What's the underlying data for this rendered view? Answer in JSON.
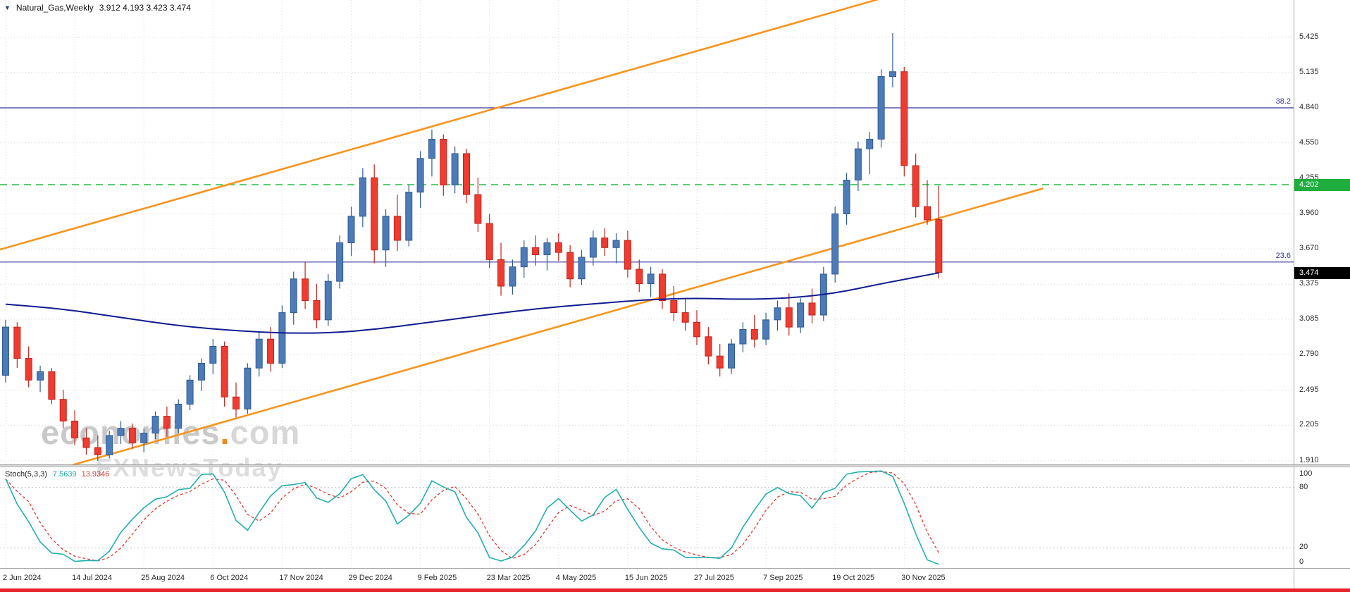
{
  "colors": {
    "background": "#ffffff",
    "grid": "#dadada",
    "bull": "#4d7bb8",
    "bull_edge": "#2f5a92",
    "bear": "#ef3b30",
    "bear_edge": "#c2241c",
    "bottom_border": "#e8232a"
  },
  "header": {
    "marker": "▼",
    "symbol": "Natural_Gas,Weekly",
    "ohlc_readout": "3.912 4.193 3.423 3.474"
  },
  "watermark": {
    "brand": "economies",
    "dot": ".",
    "tld": "com",
    "tagline": "FXNewsToday"
  },
  "indicator_label": {
    "name": "Stoch(5,3,3)",
    "value_main": "7.5639",
    "value_signal": "13.9346"
  },
  "price_axis": {
    "ticks": [
      "5.425",
      "5.135",
      "4.840",
      "4.550",
      "4.255",
      "3.960",
      "3.670",
      "3.375",
      "3.085",
      "2.790",
      "2.495",
      "2.205",
      "1.910"
    ],
    "current_price_tag": {
      "label": "3.474",
      "price": 3.474
    },
    "target_price_tag": {
      "label": "4.202",
      "price": 4.202
    }
  },
  "chart_data": {
    "type": "candlestick",
    "title": "Natural_Gas Weekly",
    "x_labels": [
      "2 Jun 2024",
      "14 Jul 2024",
      "25 Aug 2024",
      "6 Oct 2024",
      "17 Nov 2024",
      "29 Dec 2024",
      "9 Feb 2025",
      "23 Mar 2025",
      "4 May 2025",
      "15 Jun 2025",
      "27 Jul 2025",
      "7 Sep 2025",
      "19 Oct 2025",
      "30 Nov 2025"
    ],
    "x_label_every_n_bars": 6,
    "y_ticks": [
      5.425,
      5.135,
      4.84,
      4.55,
      4.255,
      3.96,
      3.67,
      3.375,
      3.085,
      2.79,
      2.495,
      2.205,
      1.91
    ],
    "ylim": [
      1.76,
      5.74
    ],
    "last_ohlc": {
      "open": 3.912,
      "high": 4.193,
      "low": 3.423,
      "close": 3.474
    },
    "candles_ohlc": [
      [
        2.62,
        3.08,
        2.56,
        3.02
      ],
      [
        3.02,
        3.06,
        2.68,
        2.76
      ],
      [
        2.76,
        2.86,
        2.52,
        2.58
      ],
      [
        2.58,
        2.7,
        2.48,
        2.65
      ],
      [
        2.65,
        2.68,
        2.38,
        2.42
      ],
      [
        2.42,
        2.5,
        2.18,
        2.24
      ],
      [
        2.24,
        2.33,
        2.04,
        2.1
      ],
      [
        2.1,
        2.18,
        1.96,
        2.02
      ],
      [
        2.02,
        2.12,
        1.91,
        1.96
      ],
      [
        1.96,
        2.16,
        1.93,
        2.12
      ],
      [
        2.12,
        2.24,
        2.05,
        2.18
      ],
      [
        2.18,
        2.22,
        2.01,
        2.06
      ],
      [
        2.06,
        2.18,
        1.98,
        2.14
      ],
      [
        2.14,
        2.32,
        2.09,
        2.28
      ],
      [
        2.28,
        2.36,
        2.11,
        2.18
      ],
      [
        2.18,
        2.42,
        2.14,
        2.38
      ],
      [
        2.38,
        2.62,
        2.33,
        2.58
      ],
      [
        2.58,
        2.76,
        2.49,
        2.72
      ],
      [
        2.72,
        2.92,
        2.63,
        2.86
      ],
      [
        2.86,
        2.9,
        2.36,
        2.44
      ],
      [
        2.44,
        2.56,
        2.27,
        2.34
      ],
      [
        2.34,
        2.72,
        2.3,
        2.68
      ],
      [
        2.68,
        2.98,
        2.61,
        2.92
      ],
      [
        2.92,
        3.02,
        2.65,
        2.72
      ],
      [
        2.72,
        3.2,
        2.68,
        3.14
      ],
      [
        3.14,
        3.48,
        3.04,
        3.42
      ],
      [
        3.42,
        3.56,
        3.17,
        3.24
      ],
      [
        3.24,
        3.38,
        3.01,
        3.08
      ],
      [
        3.08,
        3.46,
        3.03,
        3.4
      ],
      [
        3.4,
        3.78,
        3.34,
        3.72
      ],
      [
        3.72,
        4.02,
        3.61,
        3.94
      ],
      [
        3.94,
        4.34,
        3.85,
        4.26
      ],
      [
        4.26,
        4.37,
        3.55,
        3.66
      ],
      [
        3.66,
        4.0,
        3.52,
        3.94
      ],
      [
        3.94,
        4.12,
        3.65,
        3.74
      ],
      [
        3.74,
        4.2,
        3.69,
        4.14
      ],
      [
        4.14,
        4.48,
        4.01,
        4.42
      ],
      [
        4.42,
        4.66,
        4.27,
        4.58
      ],
      [
        4.58,
        4.62,
        4.11,
        4.2
      ],
      [
        4.2,
        4.52,
        4.13,
        4.46
      ],
      [
        4.46,
        4.5,
        4.05,
        4.12
      ],
      [
        4.12,
        4.26,
        3.81,
        3.88
      ],
      [
        3.88,
        3.96,
        3.51,
        3.58
      ],
      [
        3.58,
        3.72,
        3.28,
        3.36
      ],
      [
        3.36,
        3.58,
        3.29,
        3.52
      ],
      [
        3.52,
        3.74,
        3.43,
        3.68
      ],
      [
        3.68,
        3.78,
        3.53,
        3.62
      ],
      [
        3.62,
        3.76,
        3.49,
        3.72
      ],
      [
        3.72,
        3.8,
        3.57,
        3.64
      ],
      [
        3.64,
        3.7,
        3.35,
        3.42
      ],
      [
        3.42,
        3.66,
        3.37,
        3.6
      ],
      [
        3.6,
        3.82,
        3.53,
        3.76
      ],
      [
        3.76,
        3.84,
        3.61,
        3.68
      ],
      [
        3.68,
        3.8,
        3.55,
        3.74
      ],
      [
        3.74,
        3.82,
        3.43,
        3.5
      ],
      [
        3.5,
        3.58,
        3.31,
        3.38
      ],
      [
        3.38,
        3.52,
        3.27,
        3.46
      ],
      [
        3.46,
        3.5,
        3.17,
        3.24
      ],
      [
        3.24,
        3.36,
        3.07,
        3.14
      ],
      [
        3.14,
        3.26,
        2.99,
        3.06
      ],
      [
        3.06,
        3.16,
        2.87,
        2.94
      ],
      [
        2.94,
        3.02,
        2.71,
        2.78
      ],
      [
        2.78,
        2.88,
        2.61,
        2.68
      ],
      [
        2.68,
        2.92,
        2.63,
        2.88
      ],
      [
        2.88,
        3.06,
        2.81,
        3.0
      ],
      [
        3.0,
        3.12,
        2.85,
        2.92
      ],
      [
        2.92,
        3.14,
        2.87,
        3.08
      ],
      [
        3.08,
        3.24,
        2.99,
        3.18
      ],
      [
        3.18,
        3.3,
        2.95,
        3.02
      ],
      [
        3.02,
        3.26,
        2.97,
        3.22
      ],
      [
        3.22,
        3.34,
        3.05,
        3.12
      ],
      [
        3.12,
        3.52,
        3.07,
        3.46
      ],
      [
        3.46,
        4.02,
        3.39,
        3.96
      ],
      [
        3.96,
        4.3,
        3.87,
        4.24
      ],
      [
        4.24,
        4.56,
        4.15,
        4.5
      ],
      [
        4.5,
        4.64,
        4.29,
        4.58
      ],
      [
        4.58,
        5.16,
        4.51,
        5.1
      ],
      [
        5.1,
        5.46,
        5.01,
        5.14
      ],
      [
        5.14,
        5.18,
        4.27,
        4.36
      ],
      [
        4.36,
        4.46,
        3.93,
        4.02
      ],
      [
        4.02,
        4.24,
        3.87,
        3.91
      ],
      [
        3.912,
        4.193,
        3.423,
        3.474
      ]
    ],
    "ma_color": "#101c8f",
    "ma_line_points": [
      [
        0,
        3.21
      ],
      [
        5,
        3.17
      ],
      [
        10,
        3.1
      ],
      [
        15,
        3.03
      ],
      [
        20,
        2.99
      ],
      [
        24,
        2.97
      ],
      [
        28,
        2.97
      ],
      [
        32,
        3.0
      ],
      [
        36,
        3.05
      ],
      [
        40,
        3.1
      ],
      [
        44,
        3.15
      ],
      [
        48,
        3.19
      ],
      [
        52,
        3.22
      ],
      [
        56,
        3.25
      ],
      [
        60,
        3.26
      ],
      [
        64,
        3.25
      ],
      [
        68,
        3.26
      ],
      [
        72,
        3.3
      ],
      [
        76,
        3.38
      ],
      [
        81,
        3.47
      ]
    ],
    "trend_channel": {
      "color": "#f7941d",
      "slope_per_bar": 0.02725,
      "lower_intercept": 1.717,
      "upper_intercept": 3.677,
      "lower_end_bar": 90,
      "upper_end_bar": 100
    },
    "horizontal_levels": [
      {
        "label": "38.2",
        "price": 4.84,
        "color": "#3434a0",
        "style": "solid",
        "side_label": true
      },
      {
        "label": "23.6",
        "price": 3.56,
        "color": "#3434a0",
        "style": "solid",
        "side_label": true
      },
      {
        "label": "4.202",
        "price": 4.202,
        "color": "#2fbf4a",
        "style": "dashed",
        "side_label": false
      }
    ],
    "indicator": {
      "name": "Stoch(5,3,3)",
      "type": "stochastic",
      "k_period": 5,
      "slowing": 3,
      "d_period": 3,
      "levels": [
        20,
        80
      ],
      "scale_ticks": [
        100,
        80,
        20,
        0
      ],
      "last_values": [
        7.5639,
        13.9346
      ],
      "main_color": "#21b0ae",
      "signal_color": "#dd3a33"
    }
  }
}
